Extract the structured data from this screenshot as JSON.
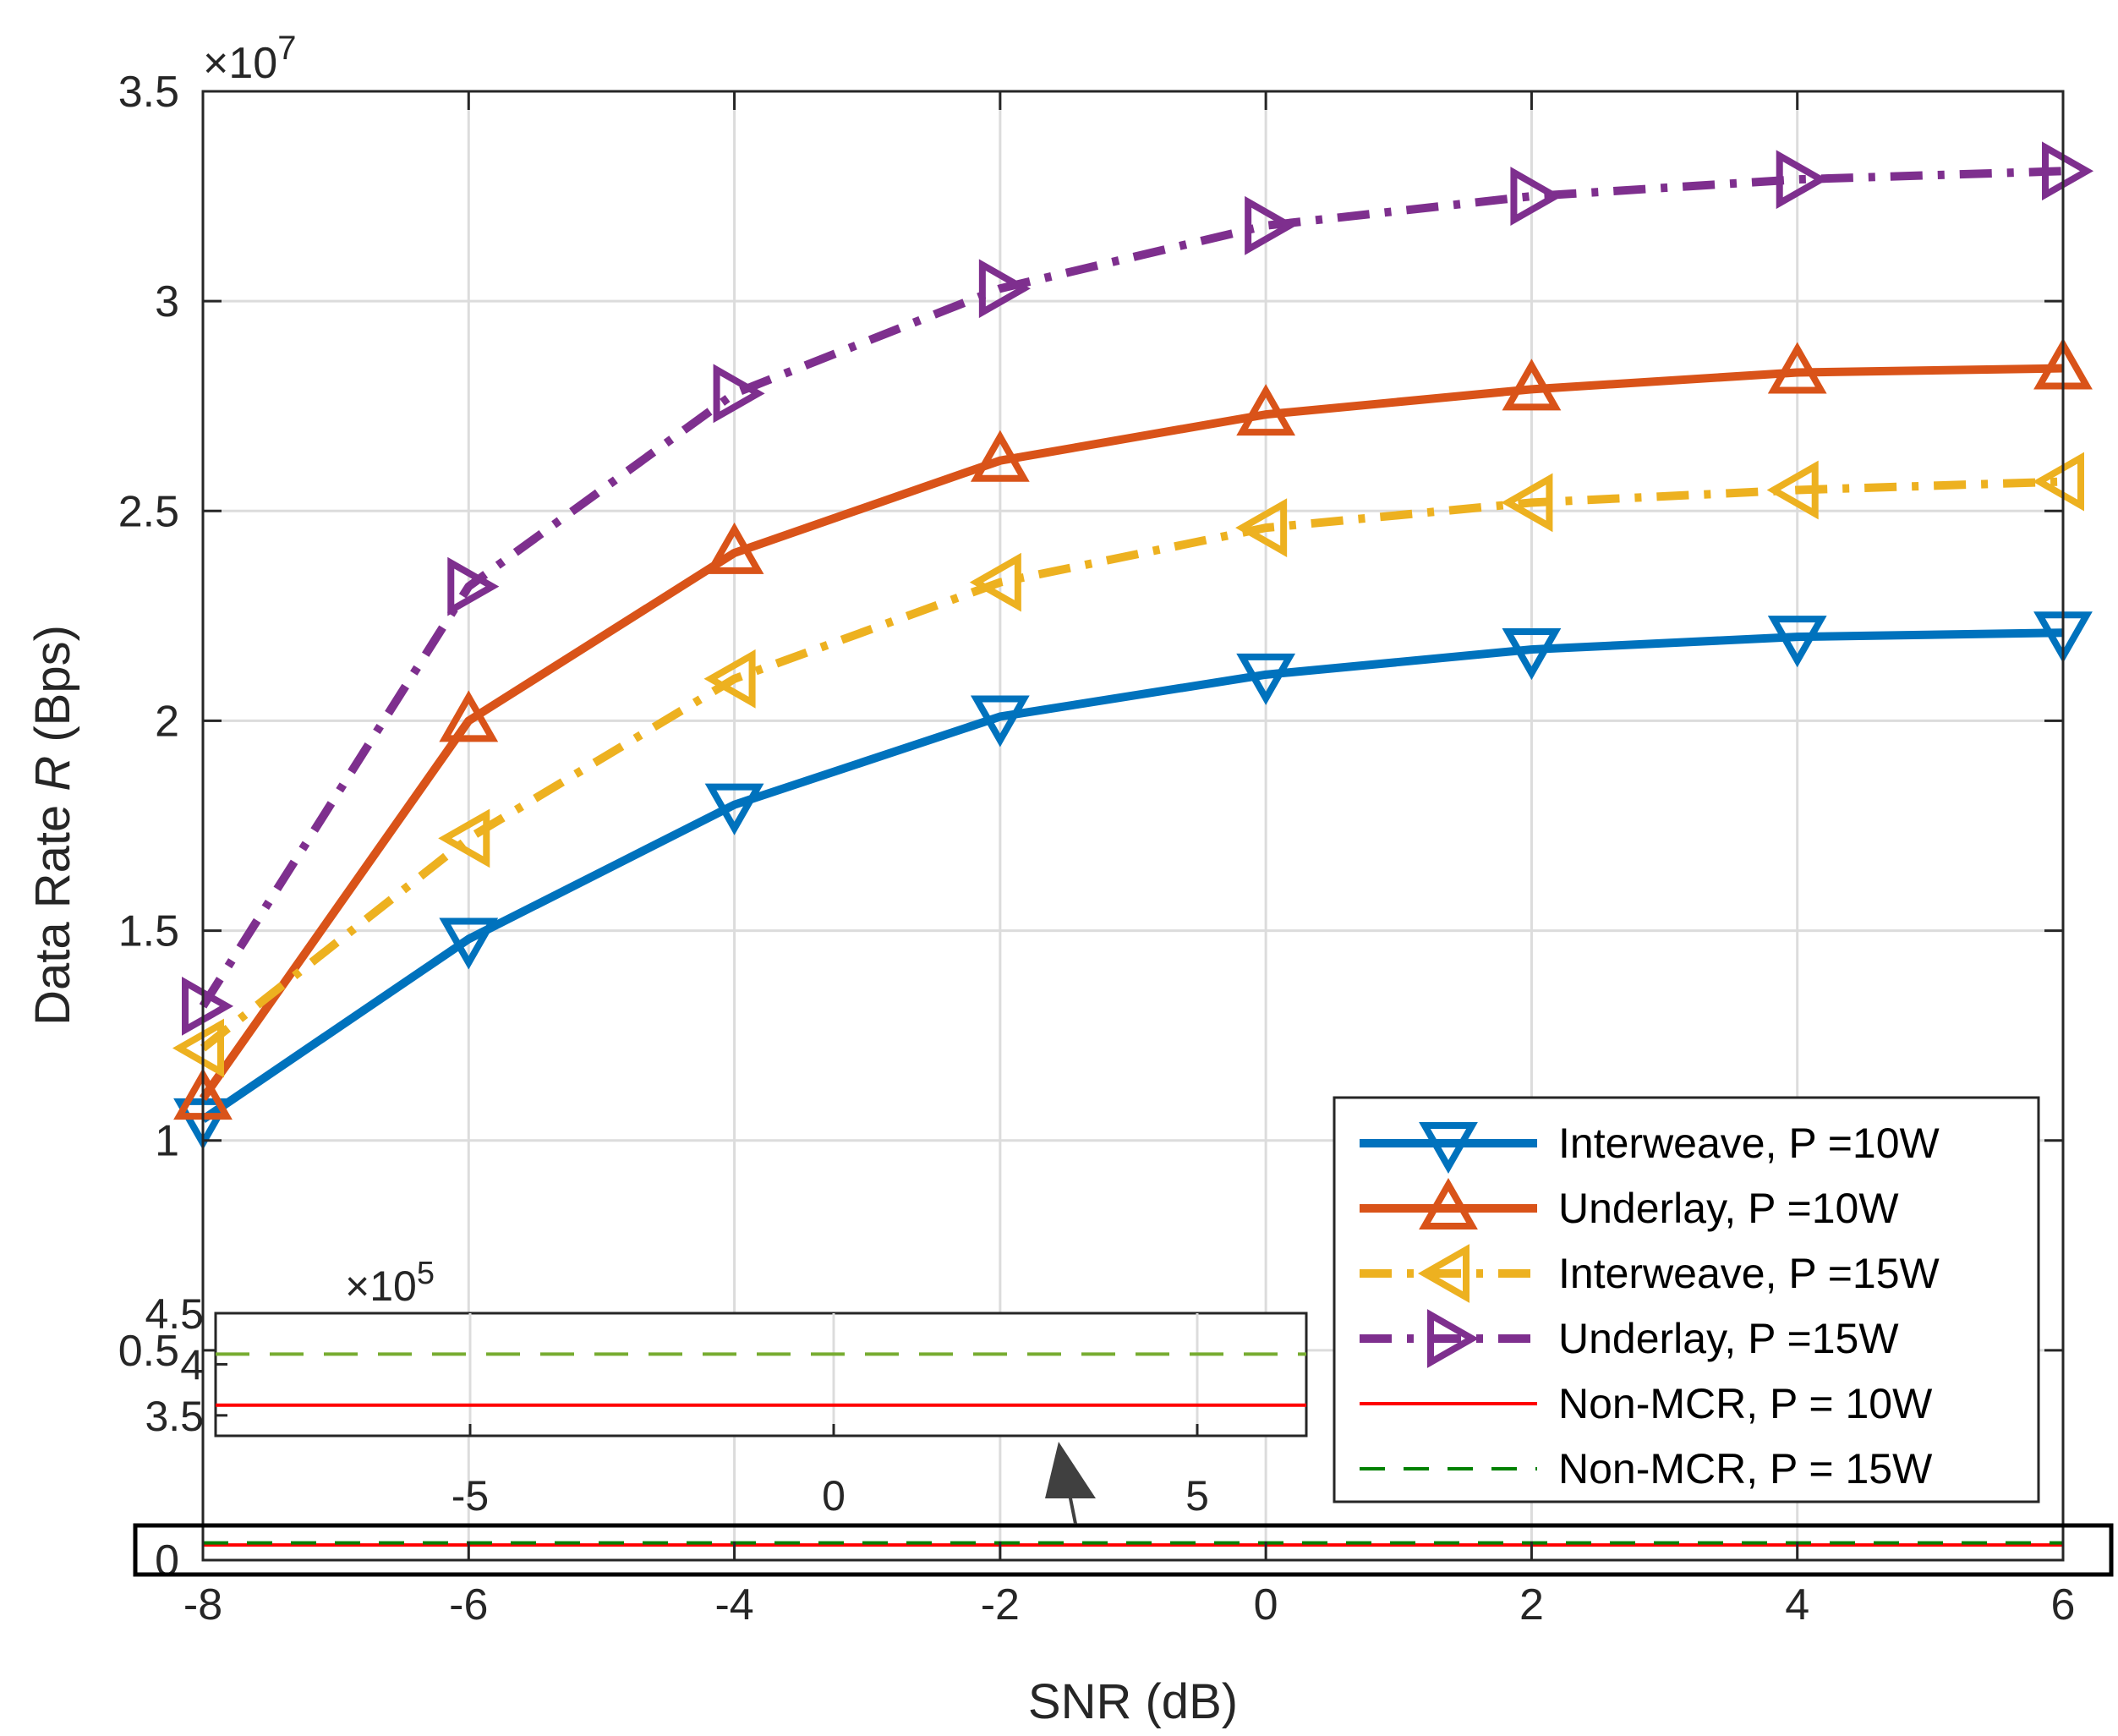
{
  "chart_data": {
    "type": "line",
    "title": "",
    "xlabel": "SNR (dB)",
    "ylabel_main": "Data Rate ",
    "ylabel_var": "R",
    "ylabel_unit": " (Bps)",
    "x": [
      -8,
      -6,
      -4,
      -2,
      0,
      2,
      4,
      6
    ],
    "xlim": [
      -8,
      6
    ],
    "ylim": [
      0,
      35000000
    ],
    "y_multiplier_base": "×10",
    "y_multiplier_exp": "7",
    "xticks": [
      "-8",
      "-6",
      "-4",
      "-2",
      "0",
      "2",
      "4",
      "6"
    ],
    "yticks": [
      "0",
      "0.5",
      "1",
      "1.5",
      "2",
      "2.5",
      "3",
      "3.5"
    ],
    "grid": true,
    "legend_position": "bottom-right",
    "series": [
      {
        "name": "Interweave, P =10W",
        "color": "#0072BD",
        "style": "solid",
        "marker": "triangle-down",
        "values": [
          10500000,
          14800000,
          18000000,
          20100000,
          21100000,
          21700000,
          22000000,
          22100000
        ]
      },
      {
        "name": "Underlay, P =10W",
        "color": "#D95319",
        "style": "solid",
        "marker": "triangle-up",
        "values": [
          11000000,
          20000000,
          24000000,
          26200000,
          27300000,
          27900000,
          28300000,
          28400000
        ]
      },
      {
        "name": "Interweave, P =15W",
        "color": "#EDB120",
        "style": "dashdot",
        "marker": "triangle-left",
        "values": [
          12200000,
          17200000,
          21000000,
          23300000,
          24600000,
          25200000,
          25500000,
          25700000
        ]
      },
      {
        "name": "Underlay, P =15W",
        "color": "#7E2F8E",
        "style": "dashdot",
        "marker": "triangle-right",
        "values": [
          13200000,
          23200000,
          27800000,
          30300000,
          31800000,
          32500000,
          32900000,
          33100000
        ]
      },
      {
        "name": "Non-MCR, P = 10W",
        "color": "#FF0000",
        "style": "solid-thin",
        "marker": "none",
        "values": [
          360000,
          360000,
          360000,
          360000,
          360000,
          360000,
          360000,
          360000
        ]
      },
      {
        "name": "Non-MCR, P = 15W",
        "color": "#008000",
        "style": "dashed",
        "marker": "none",
        "values": [
          410000,
          410000,
          410000,
          410000,
          410000,
          410000,
          410000,
          410000
        ]
      }
    ],
    "inset": {
      "xlim": [
        -8.5,
        6.5
      ],
      "ylim": [
        330000,
        450000
      ],
      "xticks": [
        "-5",
        "0",
        "5"
      ],
      "xtick_values": [
        -5,
        0,
        5
      ],
      "yticks": [
        "3.5",
        "4",
        "4.5"
      ],
      "ytick_values": [
        350000,
        400000,
        450000
      ],
      "y_multiplier_base": "×10",
      "y_multiplier_exp": "5",
      "lines": [
        {
          "name": "Non-MCR, P = 10W",
          "color": "#FF0000",
          "style": "solid",
          "value": 360000
        },
        {
          "name": "Non-MCR, P = 15W",
          "color": "#77AC30",
          "style": "dashed",
          "value": 410000
        }
      ]
    }
  }
}
